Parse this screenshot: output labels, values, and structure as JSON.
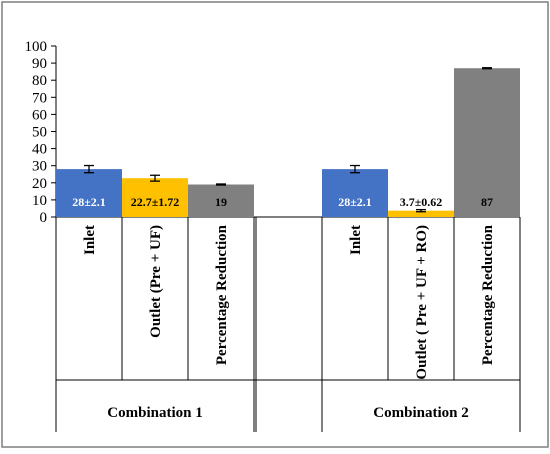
{
  "chart_data": {
    "type": "bar",
    "title": "",
    "xlabel": "",
    "ylabel": "",
    "ylim": [
      0,
      100
    ],
    "yticks": [
      0,
      10,
      20,
      30,
      40,
      50,
      60,
      70,
      80,
      90,
      100
    ],
    "grid": false,
    "legend": "none",
    "groups": [
      {
        "name": "Combination 1",
        "bars": [
          {
            "category": "Inlet",
            "value": 28,
            "error": 2.1,
            "label": "28±2.1",
            "color": "#4472C4",
            "label_color": "#ffffff"
          },
          {
            "category": "Outlet (Pre + UF)",
            "value": 22.7,
            "error": 1.72,
            "label": "22.7±1.72",
            "color": "#FFC000",
            "label_color": "#000000"
          },
          {
            "category": "Percentage Reduction",
            "value": 19,
            "error": 0.3,
            "label": "19",
            "color": "#808080",
            "label_color": "#000000"
          }
        ]
      },
      {
        "name": "Combination 2",
        "bars": [
          {
            "category": "Inlet",
            "value": 28,
            "error": 2.1,
            "label": "28±2.1",
            "color": "#4472C4",
            "label_color": "#ffffff"
          },
          {
            "category": "Outlet ( Pre + UF + RO)",
            "value": 3.7,
            "error": 0.62,
            "label": "3.7±0.62",
            "color": "#FFC000",
            "label_color": "#000000"
          },
          {
            "category": "Percentage Reduction",
            "value": 87,
            "error": 0.3,
            "label": "87",
            "color": "#808080",
            "label_color": "#000000"
          }
        ]
      }
    ]
  }
}
